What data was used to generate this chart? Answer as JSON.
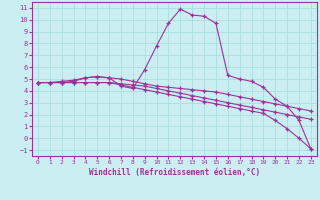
{
  "xlabel": "Windchill (Refroidissement éolien,°C)",
  "background_color": "#cbeef3",
  "line_color": "#993399",
  "grid_color": "#aadddd",
  "xlim": [
    -0.5,
    23.5
  ],
  "ylim": [
    -1.5,
    11.5
  ],
  "xticks": [
    0,
    1,
    2,
    3,
    4,
    5,
    6,
    7,
    8,
    9,
    10,
    11,
    12,
    13,
    14,
    15,
    16,
    17,
    18,
    19,
    20,
    21,
    22,
    23
  ],
  "yticks": [
    -1,
    0,
    1,
    2,
    3,
    4,
    5,
    6,
    7,
    8,
    9,
    10,
    11
  ],
  "lines": [
    {
      "x": [
        0,
        1,
        2,
        3,
        4,
        5,
        6,
        7,
        8,
        9,
        10,
        11,
        12,
        13,
        14,
        15,
        16,
        17,
        18,
        19,
        20,
        21,
        22,
        23
      ],
      "y": [
        4.7,
        4.7,
        4.8,
        4.9,
        5.1,
        5.2,
        5.1,
        5.0,
        4.8,
        4.6,
        4.4,
        4.3,
        4.2,
        4.1,
        4.0,
        3.9,
        3.7,
        3.5,
        3.3,
        3.1,
        2.9,
        2.7,
        2.5,
        2.3
      ]
    },
    {
      "x": [
        0,
        1,
        2,
        3,
        4,
        5,
        6,
        7,
        8,
        9,
        10,
        11,
        12,
        13,
        14,
        15,
        16,
        17,
        18,
        19,
        20,
        21,
        22,
        23
      ],
      "y": [
        4.7,
        4.7,
        4.7,
        4.7,
        4.7,
        4.7,
        4.7,
        4.6,
        4.5,
        4.4,
        4.2,
        4.0,
        3.8,
        3.6,
        3.4,
        3.2,
        3.0,
        2.8,
        2.6,
        2.4,
        2.2,
        2.0,
        1.8,
        1.6
      ]
    },
    {
      "x": [
        0,
        1,
        2,
        3,
        4,
        5,
        6,
        7,
        8,
        9,
        10,
        11,
        12,
        13,
        14,
        15,
        16,
        17,
        18,
        19,
        20,
        21,
        22,
        23
      ],
      "y": [
        4.7,
        4.7,
        4.7,
        4.8,
        5.1,
        5.2,
        5.1,
        4.4,
        4.2,
        5.8,
        7.8,
        9.7,
        10.9,
        10.4,
        10.3,
        9.7,
        5.3,
        5.0,
        4.8,
        4.3,
        3.3,
        2.7,
        1.5,
        -0.9
      ]
    },
    {
      "x": [
        0,
        1,
        2,
        3,
        4,
        5,
        6,
        7,
        8,
        9,
        10,
        11,
        12,
        13,
        14,
        15,
        16,
        17,
        18,
        19,
        20,
        21,
        22,
        23
      ],
      "y": [
        4.7,
        4.7,
        4.7,
        4.7,
        4.7,
        4.7,
        4.7,
        4.5,
        4.3,
        4.1,
        3.9,
        3.7,
        3.5,
        3.3,
        3.1,
        2.9,
        2.7,
        2.5,
        2.3,
        2.1,
        1.5,
        0.8,
        0.0,
        -0.9
      ]
    }
  ]
}
